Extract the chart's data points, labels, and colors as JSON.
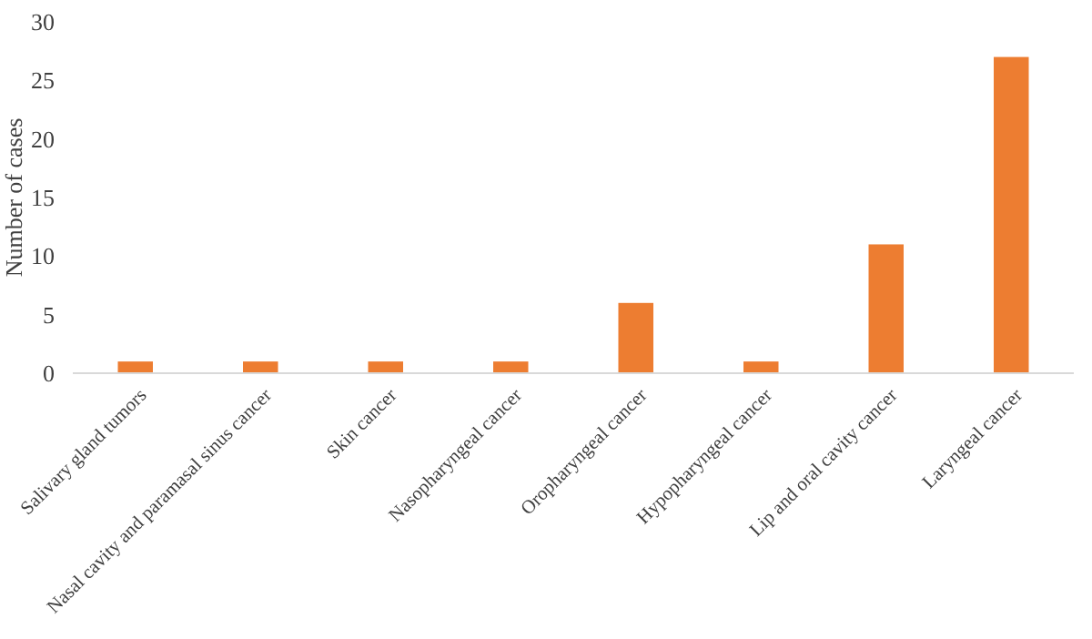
{
  "chart_data": {
    "type": "bar",
    "ylabel": "Number of cases",
    "categories": [
      "Salivary gland tumors",
      "Nasal cavity and paramasal sinus cancer",
      "Skin cancer",
      "Nasopharyngeal cancer",
      "Oropharyngeal cancer",
      "Hypopharyngeal cancer",
      "Lip and oral cavity cancer",
      "Laryngeal cancer"
    ],
    "values": [
      1,
      1,
      1,
      1,
      6,
      1,
      11,
      27
    ],
    "color": "#ed7d31",
    "ylim": [
      0,
      30
    ],
    "yticks": [
      0,
      5,
      10,
      15,
      20,
      25,
      30
    ],
    "grid": false
  }
}
